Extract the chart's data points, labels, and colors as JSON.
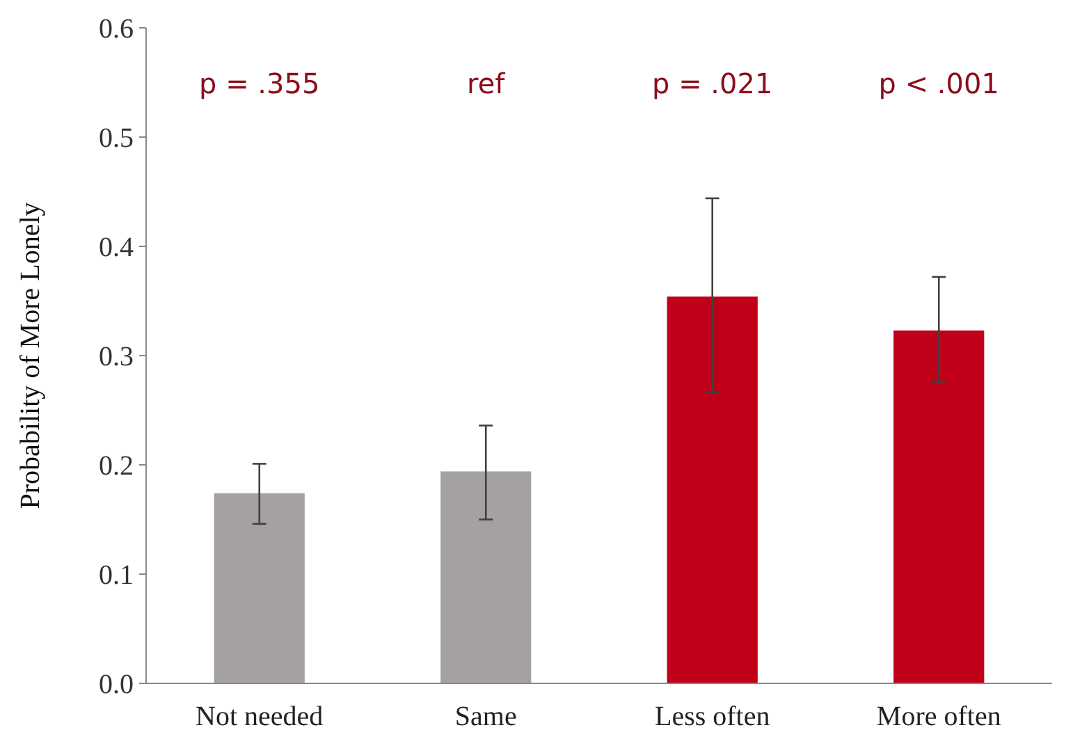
{
  "chart_data": {
    "type": "bar",
    "ylabel": "Probability of More Lonely",
    "categories": [
      "Not needed",
      "Same",
      "Less often",
      "More often"
    ],
    "values": [
      0.174,
      0.194,
      0.354,
      0.323
    ],
    "colors": [
      "#a5a1a1",
      "#a5a1a1",
      "#c00018",
      "#c00018"
    ],
    "errors": [
      [
        0.146,
        0.201
      ],
      [
        0.15,
        0.236
      ],
      [
        0.266,
        0.444
      ],
      [
        0.276,
        0.372
      ]
    ],
    "ylim": [
      0,
      0.6
    ],
    "yticks": [
      {
        "value": 0,
        "label": "0.0"
      },
      {
        "value": 0.1,
        "label": "0.1"
      },
      {
        "value": 0.2,
        "label": "0.2"
      },
      {
        "value": 0.3,
        "label": "0.3"
      },
      {
        "value": 0.4,
        "label": "0.4"
      },
      {
        "value": 0.5,
        "label": "0.5"
      },
      {
        "value": 0.6,
        "label": "0.6"
      }
    ],
    "grid": false,
    "annotations": [
      "p = .355",
      "ref",
      "p = .021",
      "p < .001"
    ]
  }
}
